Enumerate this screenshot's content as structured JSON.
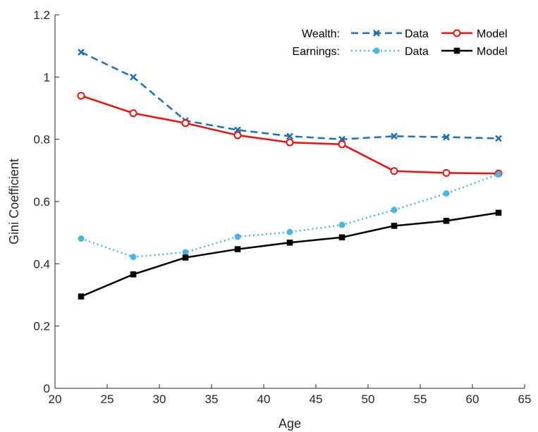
{
  "chart_data": {
    "type": "line",
    "xlabel": "Age",
    "ylabel": "Gini Coefficient",
    "xlim": [
      20,
      65
    ],
    "ylim": [
      0,
      1.2
    ],
    "x_ticks": [
      20,
      25,
      30,
      35,
      40,
      45,
      50,
      55,
      60,
      65
    ],
    "y_ticks": [
      0,
      0.2,
      0.4,
      0.6,
      0.8,
      1,
      1.2
    ],
    "x_tick_labels": [
      "20",
      "25",
      "30",
      "35",
      "40",
      "45",
      "50",
      "55",
      "60",
      "65"
    ],
    "y_tick_labels": [
      "0",
      "0.2",
      "0.4",
      "0.6",
      "0.8",
      "1",
      "1.2"
    ],
    "grid": false,
    "legend_position": "top-right",
    "legend_groups": [
      {
        "label": "Wealth:",
        "entries": [
          "Data",
          "Model"
        ]
      },
      {
        "label": "Earnings:",
        "entries": [
          "Data",
          "Model"
        ]
      }
    ],
    "x": [
      22.5,
      27.5,
      32.5,
      37.5,
      42.5,
      47.5,
      52.5,
      57.5,
      62.5
    ],
    "series": [
      {
        "group": "Wealth",
        "name": "Data",
        "color": "#1f6fb4",
        "line_style": "dashed",
        "marker": "x",
        "values": [
          1.08,
          1.0,
          0.86,
          0.83,
          0.81,
          0.8,
          0.81,
          0.807,
          0.803
        ]
      },
      {
        "group": "Wealth",
        "name": "Model",
        "color": "#e8120c",
        "line_style": "solid",
        "marker": "open-circle",
        "values": [
          0.94,
          0.884,
          0.852,
          0.813,
          0.79,
          0.784,
          0.698,
          0.692,
          0.69
        ]
      },
      {
        "group": "Earnings",
        "name": "Data",
        "color": "#4cb6e3",
        "line_style": "dotted",
        "marker": "filled-circle",
        "values": [
          0.481,
          0.422,
          0.437,
          0.487,
          0.502,
          0.525,
          0.573,
          0.626,
          0.688
        ]
      },
      {
        "group": "Earnings",
        "name": "Model",
        "color": "#000000",
        "line_style": "solid",
        "marker": "filled-square",
        "values": [
          0.295,
          0.366,
          0.42,
          0.447,
          0.468,
          0.485,
          0.522,
          0.538,
          0.564
        ]
      }
    ]
  }
}
